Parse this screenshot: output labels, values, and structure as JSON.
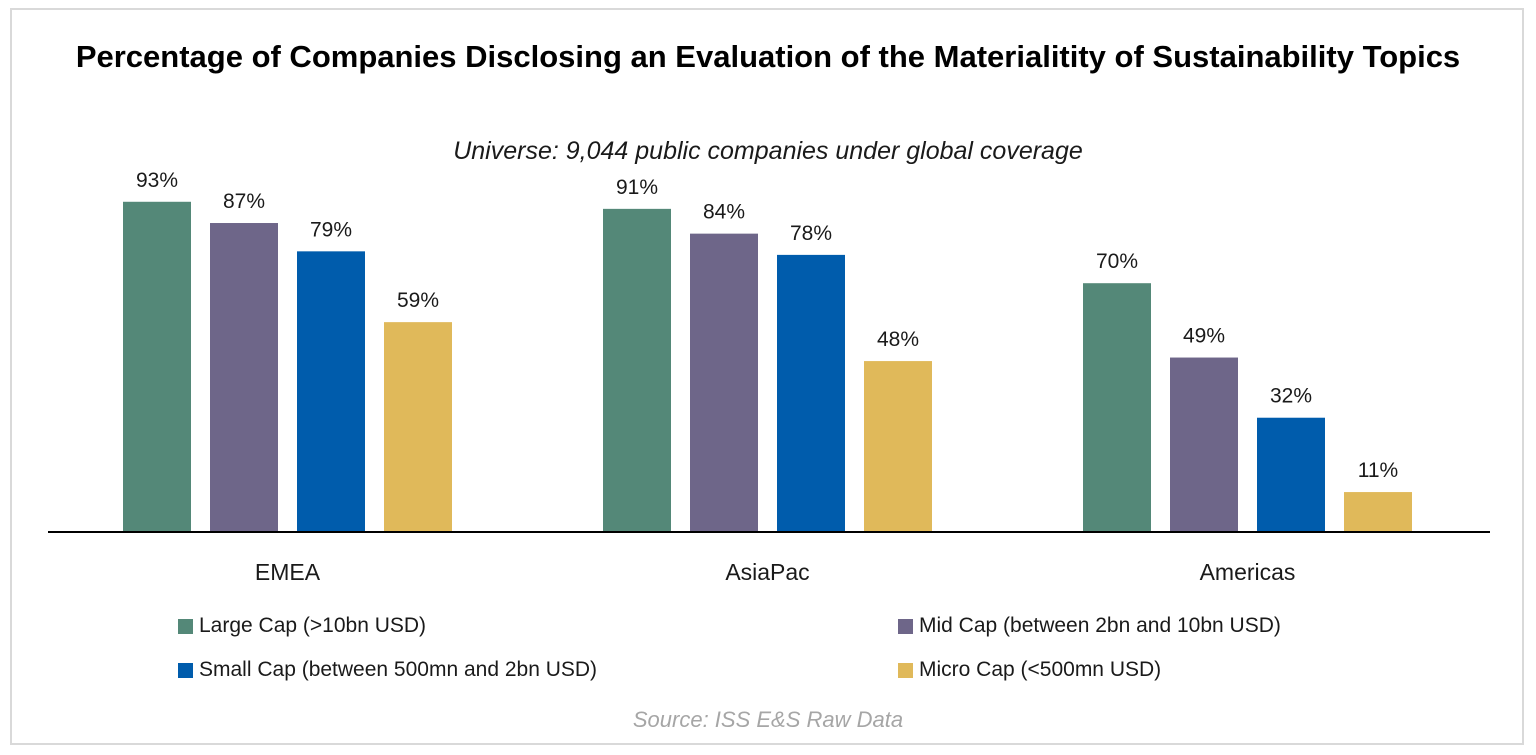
{
  "chart_data": {
    "type": "bar",
    "title": "Percentage of Companies Disclosing an Evaluation of the Materialitity of Sustainability Topics",
    "subtitle": "Universe: 9,044 public companies under global coverage",
    "categories": [
      "EMEA",
      "AsiaPac",
      "Americas"
    ],
    "series": [
      {
        "name": "Large Cap (>10bn USD)",
        "color": "#548878",
        "values": [
          93,
          91,
          70
        ]
      },
      {
        "name": "Mid Cap (between 2bn and 10bn USD)",
        "color": "#6e6689",
        "values": [
          87,
          84,
          49
        ]
      },
      {
        "name": "Small Cap (between 500mn and 2bn USD)",
        "color": "#005cac",
        "values": [
          79,
          78,
          32
        ]
      },
      {
        "name": "Micro Cap (<500mn USD)",
        "color": "#e0b95a",
        "values": [
          59,
          48,
          11
        ]
      }
    ],
    "value_suffix": "%",
    "ylim": [
      0,
      100
    ],
    "xlabel": "",
    "ylabel": "",
    "grid": false,
    "legend_position": "bottom",
    "source": "Source: ISS E&S Raw Data"
  }
}
